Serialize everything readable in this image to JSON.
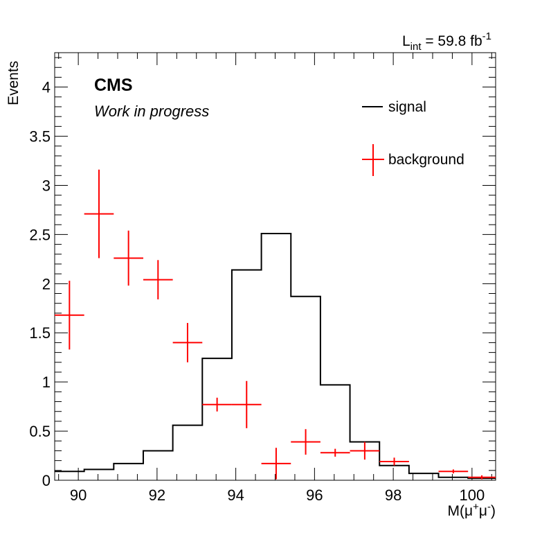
{
  "chart_data": {
    "type": "histogram",
    "title": "",
    "xlabel": {
      "base": "M(μ",
      "sup1": "+",
      "mid": "μ",
      "sup2": "-",
      "end": ")"
    },
    "ylabel": "Events",
    "xlim": [
      89.4,
      100.6
    ],
    "ylim": [
      0,
      4.35
    ],
    "x_ticks": [
      "90",
      "92",
      "94",
      "96",
      "98",
      "100"
    ],
    "x_tick_values": [
      90,
      92,
      94,
      96,
      98,
      100
    ],
    "y_ticks": [
      "0",
      "0.5",
      "1",
      "1.5",
      "2",
      "2.5",
      "3",
      "3.5",
      "4"
    ],
    "y_tick_values": [
      0,
      0.5,
      1,
      1.5,
      2,
      2.5,
      3,
      3.5,
      4
    ],
    "bin_edges": [
      89.4,
      90.15,
      90.9,
      91.65,
      92.4,
      93.15,
      93.9,
      94.65,
      95.4,
      96.15,
      96.9,
      97.65,
      98.4,
      99.15,
      99.9,
      100.6
    ],
    "series": [
      {
        "name": "signal",
        "style": "step",
        "color": "#000000",
        "values": [
          0.09,
          0.11,
          0.17,
          0.3,
          0.56,
          1.24,
          2.14,
          2.51,
          1.87,
          0.97,
          0.39,
          0.15,
          0.07,
          0.03,
          0.02
        ]
      },
      {
        "name": "background",
        "style": "errorbar",
        "color": "#ff0000",
        "values": [
          1.68,
          2.71,
          2.26,
          2.04,
          1.4,
          0.77,
          0.77,
          0.17,
          0.39,
          0.28,
          0.3,
          0.19,
          0.0,
          0.09,
          0.03
        ],
        "errors": [
          0.35,
          0.45,
          0.28,
          0.2,
          0.2,
          0.07,
          0.24,
          0.16,
          0.13,
          0.04,
          0.09,
          0.04,
          0.0,
          0.02,
          0.02
        ],
        "shown": [
          true,
          true,
          true,
          true,
          true,
          true,
          true,
          true,
          true,
          true,
          true,
          true,
          false,
          true,
          true
        ]
      }
    ],
    "legend": {
      "placement": "top-right",
      "entries": [
        "signal",
        "background"
      ]
    },
    "annotations": {
      "experiment": "CMS",
      "status": "Work in progress",
      "lumi": {
        "base": "L",
        "sub": "int",
        "value": " = 59.8 fb",
        "sup": "-1"
      }
    },
    "grid": false
  }
}
